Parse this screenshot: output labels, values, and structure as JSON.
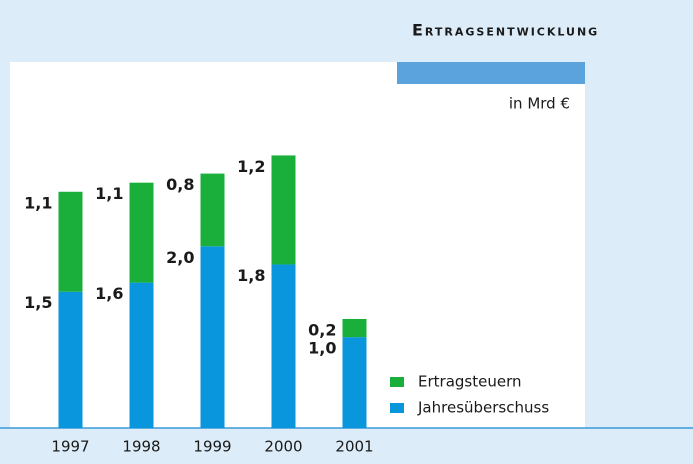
{
  "chart_data": {
    "type": "stacked_bar",
    "title": "Ertragsentwicklung",
    "unit_label": "in Mrd €",
    "categories": [
      "1997",
      "1998",
      "1999",
      "2000",
      "2001"
    ],
    "series": [
      {
        "name": "Jahresüberschuss",
        "color": "#0a96dc",
        "values": [
          1.5,
          1.6,
          2.0,
          1.8,
          1.0
        ],
        "value_labels": [
          "1,5",
          "1,6",
          "2,0",
          "1,8",
          "1,0"
        ]
      },
      {
        "name": "Ertragsteuern",
        "color": "#1aaf3a",
        "values": [
          1.1,
          1.1,
          0.8,
          1.2,
          0.2
        ],
        "value_labels": [
          "1,1",
          "1,1",
          "0,8",
          "1,2",
          "0,2"
        ]
      }
    ],
    "ylim": [
      0,
      3.5
    ]
  }
}
